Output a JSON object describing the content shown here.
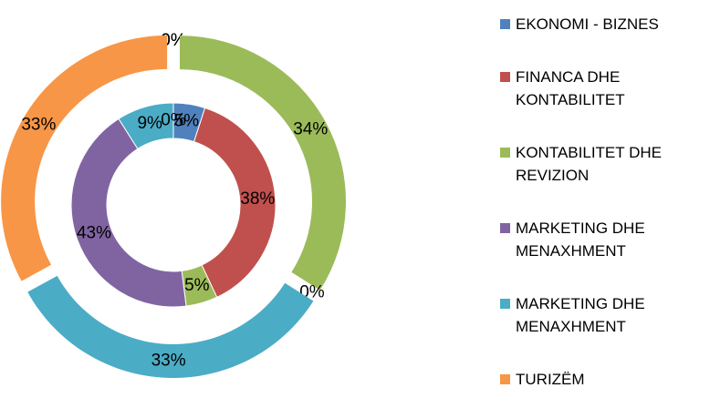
{
  "chart_data": {
    "type": "doughnut",
    "categories": [
      "EKONOMI - BIZNES",
      "FINANCA DHE KONTABILITET",
      "KONTABILITET DHE REVIZION",
      "MARKETING DHE MENAXHMENT",
      "MARKETING DHE MENAXHMENT",
      "TURIZËM"
    ],
    "colors": [
      "#4f81bd",
      "#c0504d",
      "#9bbb59",
      "#8064a2",
      "#4bacc6",
      "#f79646"
    ],
    "legend": "right",
    "series": [
      {
        "values": [
          5,
          38,
          5,
          43,
          9,
          0
        ],
        "value_labels": [
          "5%",
          "38%",
          "5%",
          "43%",
          "9%",
          "0%"
        ]
      },
      {
        "values": [
          0,
          0,
          34,
          0,
          33,
          33
        ],
        "value_labels": [
          "0%",
          "0%",
          "34%",
          "0%",
          "33%",
          "33%"
        ]
      }
    ]
  }
}
